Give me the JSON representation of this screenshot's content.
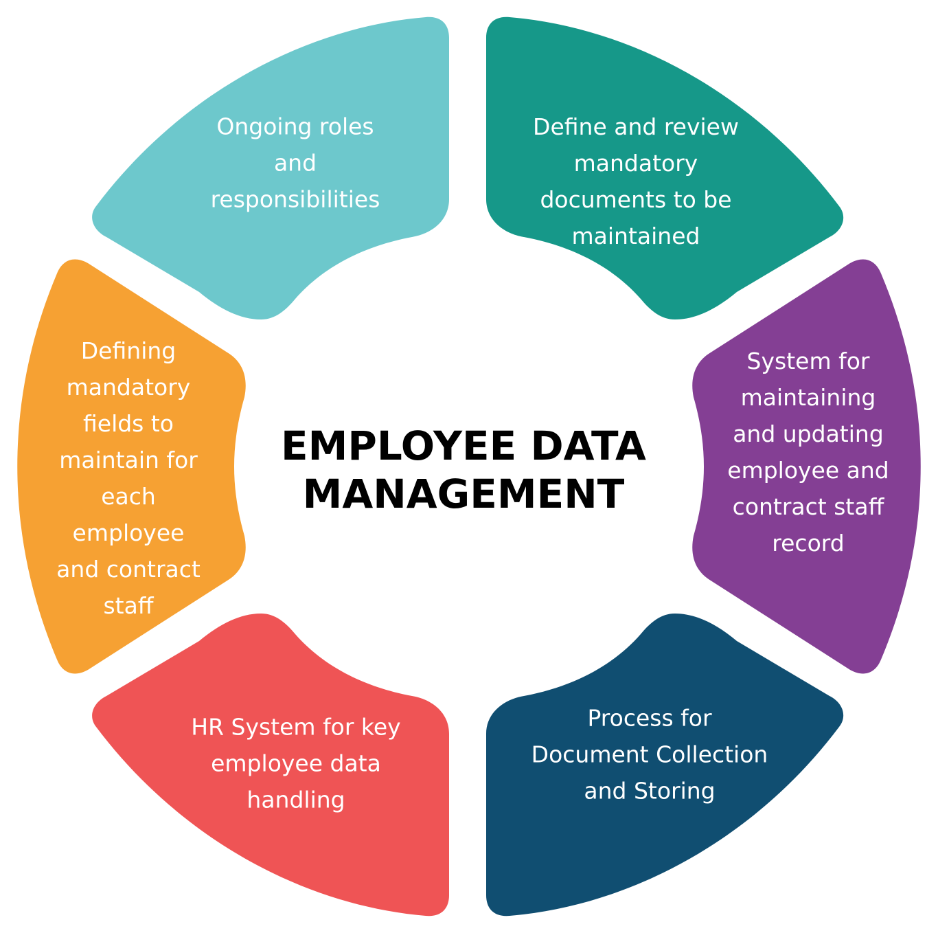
{
  "title": {
    "lines": [
      "EMPLOYEE DATA",
      "MANAGEMENT"
    ],
    "color": "#000000"
  },
  "segments": [
    {
      "id": "roles",
      "color": "#6DC8CC",
      "lines": [
        "Ongoing roles",
        "and",
        "responsibilities"
      ]
    },
    {
      "id": "mandatory-documents",
      "color": "#169889",
      "lines": [
        "Define and review",
        "mandatory",
        "documents to be",
        "maintained"
      ]
    },
    {
      "id": "records-system",
      "color": "#843F94",
      "lines": [
        "System for",
        "maintaining",
        "and updating",
        "employee and",
        "contract staff",
        "record"
      ]
    },
    {
      "id": "document-process",
      "color": "#104E71",
      "lines": [
        "Process for",
        "Document Collection",
        "and Storing"
      ]
    },
    {
      "id": "hr-system",
      "color": "#EF5455",
      "lines": [
        "HR System for key",
        "employee data",
        "handling"
      ]
    },
    {
      "id": "mandatory-fields",
      "color": "#F6A133",
      "lines": [
        "Defining",
        "mandatory",
        "fields to",
        "maintain for",
        "each",
        "employee",
        "and contract",
        "staff"
      ]
    }
  ]
}
